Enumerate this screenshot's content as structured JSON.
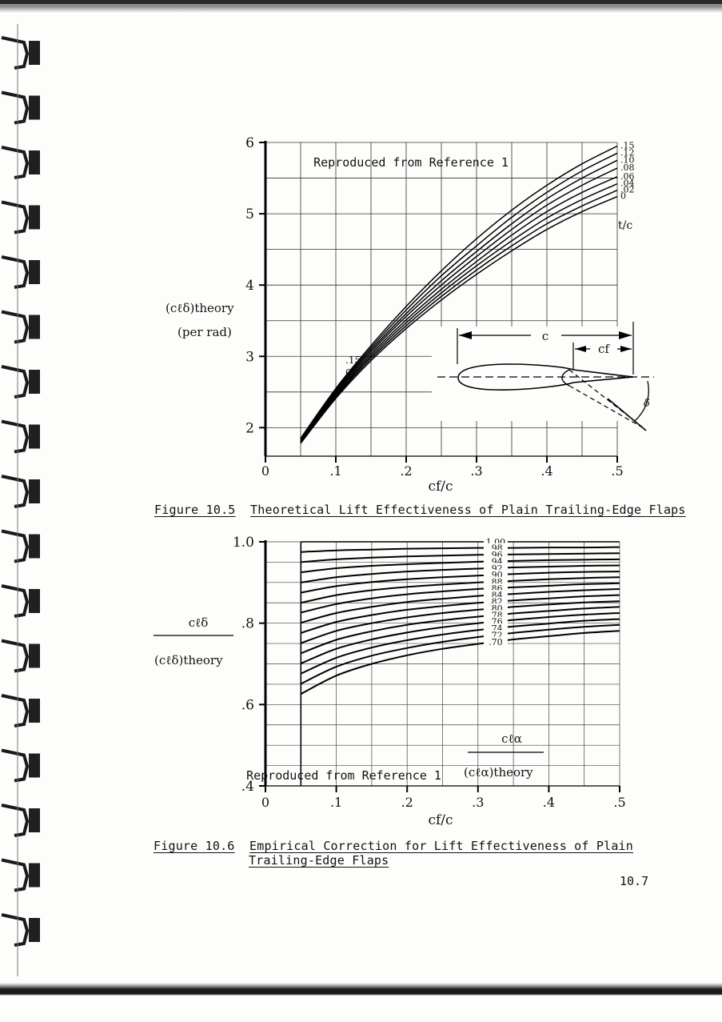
{
  "page": {
    "number": "10.7"
  },
  "figure_10_5": {
    "number": "Figure 10.5",
    "title": "Theoretical Lift Effectiveness of Plain Trailing-Edge Flaps"
  },
  "figure_10_6": {
    "number": "Figure 10.6",
    "title_line1": "Empirical Correction for Lift Effectiveness of Plain",
    "title_line2": "Trailing-Edge Flaps"
  },
  "chart_data": [
    {
      "type": "line",
      "annotation": "Reproduced from Reference 1",
      "xlabel": "cf/c",
      "ylabel": "(cℓδ)theory",
      "ylabel_units": "(per rad)",
      "xlim": [
        0,
        0.5
      ],
      "ylim": [
        1.6,
        6.0
      ],
      "x_ticks": [
        "0",
        ".1",
        ".2",
        ".3",
        ".4",
        ".5"
      ],
      "y_ticks": [
        "2",
        "3",
        "4",
        "5",
        "6"
      ],
      "curve_parameter": "t/c",
      "inset_labels": {
        "chord": "c",
        "flap_chord": "cf",
        "deflection": "δ"
      },
      "low_end_labels": [
        ".15",
        "0"
      ],
      "x": [
        0.05,
        0.1,
        0.15,
        0.2,
        0.25,
        0.3,
        0.35,
        0.4,
        0.45,
        0.5
      ],
      "series": [
        {
          "name": ".15",
          "values": [
            1.85,
            2.55,
            3.15,
            3.7,
            4.2,
            4.65,
            5.05,
            5.4,
            5.7,
            5.95
          ]
        },
        {
          "name": ".12",
          "values": [
            1.84,
            2.53,
            3.12,
            3.65,
            4.13,
            4.55,
            4.95,
            5.3,
            5.6,
            5.85
          ]
        },
        {
          "name": ".10",
          "values": [
            1.83,
            2.51,
            3.09,
            3.6,
            4.06,
            4.47,
            4.86,
            5.21,
            5.5,
            5.75
          ]
        },
        {
          "name": ".08",
          "values": [
            1.82,
            2.49,
            3.06,
            3.56,
            4.0,
            4.4,
            4.78,
            5.12,
            5.4,
            5.64
          ]
        },
        {
          "name": ".06",
          "values": [
            1.81,
            2.47,
            3.03,
            3.51,
            3.94,
            4.33,
            4.7,
            5.03,
            5.3,
            5.52
          ]
        },
        {
          "name": ".04",
          "values": [
            1.8,
            2.45,
            3.0,
            3.47,
            3.89,
            4.27,
            4.62,
            4.94,
            5.2,
            5.42
          ]
        },
        {
          "name": ".02",
          "values": [
            1.79,
            2.43,
            2.97,
            3.43,
            3.84,
            4.21,
            4.55,
            4.86,
            5.11,
            5.33
          ]
        },
        {
          "name": "0",
          "values": [
            1.78,
            2.41,
            2.94,
            3.39,
            3.79,
            4.15,
            4.48,
            4.78,
            5.03,
            5.24
          ]
        }
      ]
    },
    {
      "type": "line",
      "annotation": "Reproduced from Reference 1",
      "xlabel": "cf/c",
      "ylabel_numerator": "cℓδ",
      "ylabel_denominator": "(cℓδ)theory",
      "xlim": [
        0,
        0.5
      ],
      "ylim": [
        0.4,
        1.0
      ],
      "x_ticks": [
        "0",
        ".1",
        ".2",
        ".3",
        ".4",
        ".5"
      ],
      "y_ticks": [
        ".4",
        ".6",
        ".8",
        "1.0"
      ],
      "curve_parameter_numerator": "cℓα",
      "curve_parameter_denominator": "(cℓα)theory",
      "x": [
        0.05,
        0.1,
        0.15,
        0.2,
        0.25,
        0.3,
        0.35,
        0.4,
        0.45,
        0.5
      ],
      "series": [
        {
          "name": "1.00",
          "values": [
            1.0,
            1.0,
            1.0,
            1.0,
            1.0,
            1.0,
            1.0,
            1.0,
            1.0,
            1.0
          ]
        },
        {
          "name": ".98",
          "values": [
            0.975,
            0.979,
            0.981,
            0.983,
            0.984,
            0.985,
            0.985,
            0.986,
            0.986,
            0.987
          ]
        },
        {
          "name": ".96",
          "values": [
            0.95,
            0.957,
            0.961,
            0.964,
            0.966,
            0.968,
            0.969,
            0.97,
            0.971,
            0.972
          ]
        },
        {
          "name": ".94",
          "values": [
            0.925,
            0.935,
            0.941,
            0.945,
            0.948,
            0.951,
            0.953,
            0.955,
            0.956,
            0.957
          ]
        },
        {
          "name": ".92",
          "values": [
            0.9,
            0.913,
            0.921,
            0.927,
            0.931,
            0.934,
            0.937,
            0.939,
            0.941,
            0.942
          ]
        },
        {
          "name": ".90",
          "values": [
            0.875,
            0.891,
            0.901,
            0.908,
            0.913,
            0.917,
            0.921,
            0.924,
            0.926,
            0.927
          ]
        },
        {
          "name": ".88",
          "values": [
            0.85,
            0.869,
            0.881,
            0.889,
            0.895,
            0.9,
            0.904,
            0.908,
            0.911,
            0.913
          ]
        },
        {
          "name": ".86",
          "values": [
            0.826,
            0.847,
            0.861,
            0.871,
            0.878,
            0.884,
            0.888,
            0.892,
            0.896,
            0.898
          ]
        },
        {
          "name": ".84",
          "values": [
            0.801,
            0.825,
            0.84,
            0.852,
            0.86,
            0.867,
            0.872,
            0.877,
            0.881,
            0.884
          ]
        },
        {
          "name": ".82",
          "values": [
            0.776,
            0.803,
            0.82,
            0.833,
            0.842,
            0.85,
            0.856,
            0.861,
            0.866,
            0.869
          ]
        },
        {
          "name": ".80",
          "values": [
            0.751,
            0.781,
            0.8,
            0.814,
            0.825,
            0.833,
            0.84,
            0.846,
            0.851,
            0.854
          ]
        },
        {
          "name": ".78",
          "values": [
            0.726,
            0.759,
            0.78,
            0.796,
            0.807,
            0.816,
            0.824,
            0.83,
            0.836,
            0.84
          ]
        },
        {
          "name": ".76",
          "values": [
            0.701,
            0.737,
            0.76,
            0.777,
            0.79,
            0.8,
            0.808,
            0.815,
            0.821,
            0.825
          ]
        },
        {
          "name": ".74",
          "values": [
            0.676,
            0.715,
            0.74,
            0.758,
            0.772,
            0.783,
            0.792,
            0.799,
            0.806,
            0.81
          ]
        },
        {
          "name": ".72",
          "values": [
            0.651,
            0.693,
            0.72,
            0.739,
            0.754,
            0.766,
            0.776,
            0.784,
            0.791,
            0.796
          ]
        },
        {
          "name": ".70",
          "values": [
            0.626,
            0.671,
            0.7,
            0.721,
            0.737,
            0.749,
            0.76,
            0.768,
            0.776,
            0.781
          ]
        }
      ]
    }
  ]
}
